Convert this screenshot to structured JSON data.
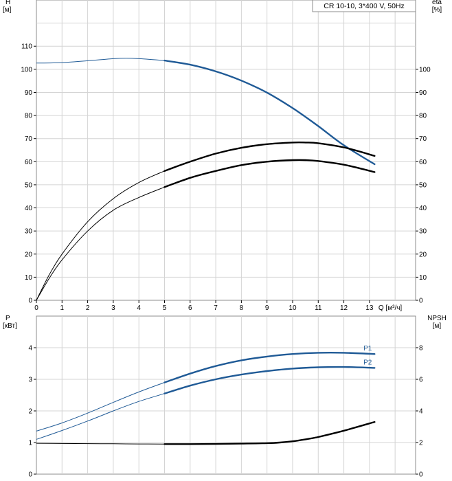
{
  "chart_data": [
    {
      "type": "line",
      "title": "CR 10-10, 3*400 V, 50Hz",
      "ylabel_left": "H",
      "ylabel_left_unit": "[м]",
      "ylabel_right": "eta",
      "ylabel_right_unit": "[%]",
      "xlabel": "Q [м³/ч]",
      "xlim": [
        0,
        14.8
      ],
      "ylim_left": [
        0,
        120
      ],
      "ylim_right": [
        0,
        120
      ],
      "x_ticks": [
        0,
        1,
        2,
        3,
        4,
        5,
        6,
        7,
        8,
        9,
        10,
        11,
        12,
        13
      ],
      "y_ticks_left": [
        0,
        10,
        20,
        30,
        40,
        50,
        60,
        70,
        80,
        90,
        100,
        110
      ],
      "y_ticks_right": [
        0,
        10,
        20,
        30,
        40,
        50,
        60,
        70,
        80,
        90,
        100
      ],
      "grid": true,
      "series": [
        {
          "axis": "left",
          "color": "#1f5a96",
          "x": [
            0,
            1,
            2,
            3,
            3.5,
            4,
            5,
            6,
            7,
            8,
            9,
            10,
            11,
            12,
            13.2
          ],
          "values": [
            102.7,
            102.9,
            103.7,
            104.6,
            104.8,
            104.6,
            103.8,
            102.0,
            99.1,
            95.1,
            89.9,
            83.2,
            75.4,
            67.1,
            58.9
          ]
        },
        {
          "axis": "right",
          "color": "#000000",
          "x": [
            0,
            0.5,
            1,
            2,
            3,
            4,
            5,
            6,
            7,
            8,
            9,
            10,
            10.5,
            11,
            12,
            13.2
          ],
          "values": [
            0,
            11,
            20,
            34,
            44,
            51,
            56,
            60,
            63.5,
            66,
            67.6,
            68.3,
            68.3,
            68.0,
            66.2,
            62.5
          ]
        },
        {
          "axis": "right",
          "color": "#000000",
          "x": [
            0,
            0.5,
            1,
            2,
            3,
            4,
            5,
            6,
            7,
            8,
            9,
            10,
            10.5,
            11,
            12,
            13.2
          ],
          "values": [
            0,
            9.5,
            17.5,
            30,
            39,
            44.5,
            49,
            53,
            56,
            58.5,
            60,
            60.7,
            60.7,
            60.3,
            58.7,
            55.5
          ]
        }
      ]
    },
    {
      "type": "line",
      "ylabel_left": "P",
      "ylabel_left_unit": "[кВт]",
      "ylabel_right": "NPSH",
      "ylabel_right_unit": "[м]",
      "xlim": [
        0,
        14.8
      ],
      "ylim_left": [
        0,
        5
      ],
      "ylim_right": [
        0,
        10
      ],
      "y_ticks_left": [
        0,
        1,
        2,
        3,
        4
      ],
      "y_ticks_right": [
        0,
        2,
        4,
        6,
        8
      ],
      "grid": true,
      "series": [
        {
          "name": "P1",
          "axis": "left",
          "color": "#1f5a96",
          "x": [
            0,
            1,
            2,
            3,
            4,
            5,
            6,
            7,
            8,
            9,
            10,
            11,
            12,
            13.2
          ],
          "values": [
            1.36,
            1.62,
            1.93,
            2.27,
            2.6,
            2.9,
            3.18,
            3.42,
            3.6,
            3.72,
            3.8,
            3.84,
            3.84,
            3.8
          ]
        },
        {
          "name": "P2",
          "axis": "left",
          "color": "#1f5a96",
          "x": [
            0,
            1,
            2,
            3,
            4,
            5,
            6,
            7,
            8,
            9,
            10,
            11,
            12,
            13.2
          ],
          "values": [
            1.1,
            1.38,
            1.68,
            2.0,
            2.3,
            2.55,
            2.8,
            3.0,
            3.15,
            3.26,
            3.34,
            3.38,
            3.39,
            3.36
          ]
        },
        {
          "axis": "right",
          "color": "#000000",
          "x": [
            0,
            1,
            2,
            3,
            4,
            5,
            6,
            7,
            8,
            9,
            9.5,
            10,
            10.5,
            11,
            12,
            13.2
          ],
          "values": [
            1.95,
            1.94,
            1.93,
            1.92,
            1.91,
            1.9,
            1.9,
            1.91,
            1.93,
            1.96,
            2.0,
            2.08,
            2.2,
            2.35,
            2.75,
            3.3
          ]
        }
      ]
    }
  ]
}
